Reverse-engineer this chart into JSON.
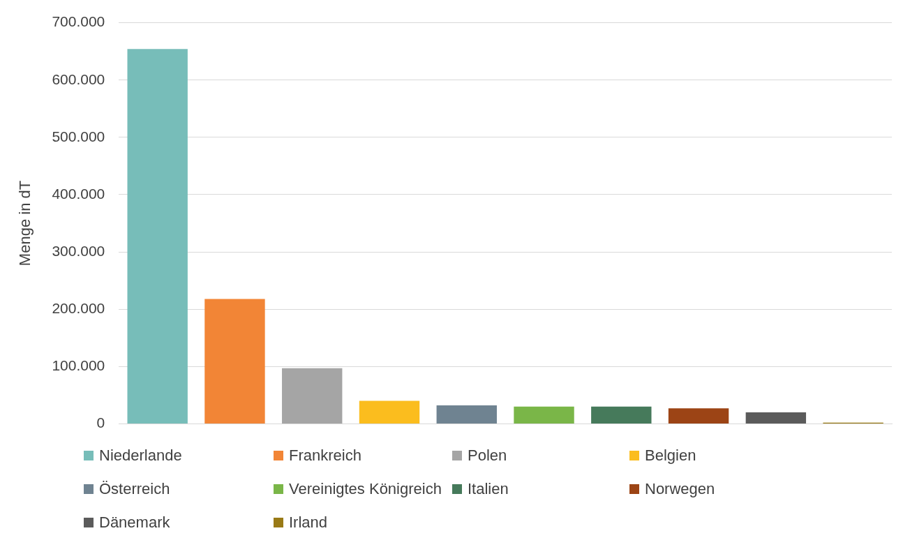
{
  "chart_data": {
    "type": "bar",
    "ylabel": "Menge in dT",
    "categories": [
      null,
      null,
      null,
      null,
      null,
      null,
      null,
      null,
      null,
      null
    ],
    "series": [
      {
        "name": "Niederlande",
        "color": "#77bdb9",
        "values": [
          654000,
          null,
          null,
          null,
          null,
          null,
          null,
          null,
          null,
          null
        ]
      },
      {
        "name": "Frankreich",
        "color": "#f28536",
        "values": [
          null,
          218000,
          null,
          null,
          null,
          null,
          null,
          null,
          null,
          null
        ]
      },
      {
        "name": "Polen",
        "color": "#a5a5a5",
        "values": [
          null,
          null,
          97000,
          null,
          null,
          null,
          null,
          null,
          null,
          null
        ]
      },
      {
        "name": "Belgien",
        "color": "#fbbd1e",
        "values": [
          null,
          null,
          null,
          40000,
          null,
          null,
          null,
          null,
          null,
          null
        ]
      },
      {
        "name": "Österreich",
        "color": "#6f8391",
        "values": [
          null,
          null,
          null,
          null,
          32000,
          null,
          null,
          null,
          null,
          null
        ]
      },
      {
        "name": "Vereinigtes Königreich",
        "color": "#7ab648",
        "values": [
          null,
          null,
          null,
          null,
          null,
          30000,
          null,
          null,
          null,
          null
        ]
      },
      {
        "name": "Italien",
        "color": "#467a5b",
        "values": [
          null,
          null,
          null,
          null,
          null,
          null,
          30000,
          null,
          null,
          null
        ]
      },
      {
        "name": "Norwegen",
        "color": "#9c4415",
        "values": [
          null,
          null,
          null,
          null,
          null,
          null,
          null,
          27000,
          null,
          null
        ]
      },
      {
        "name": "Dänemark",
        "color": "#5b5b5b",
        "values": [
          null,
          null,
          null,
          null,
          null,
          null,
          null,
          null,
          20000,
          null
        ]
      },
      {
        "name": "Irland",
        "color": "#997a16",
        "values": [
          null,
          null,
          null,
          null,
          null,
          null,
          null,
          null,
          null,
          2000
        ]
      }
    ],
    "ylim": [
      0,
      700000
    ],
    "yticks": [
      {
        "value": 0,
        "label": "0"
      },
      {
        "value": 100000,
        "label": "100.000"
      },
      {
        "value": 200000,
        "label": "200.000"
      },
      {
        "value": 300000,
        "label": "300.000"
      },
      {
        "value": 400000,
        "label": "400.000"
      },
      {
        "value": 500000,
        "label": "500.000"
      },
      {
        "value": 600000,
        "label": "600.000"
      },
      {
        "value": 700000,
        "label": "700.000"
      }
    ],
    "grid": "y",
    "legend": "bottom"
  }
}
